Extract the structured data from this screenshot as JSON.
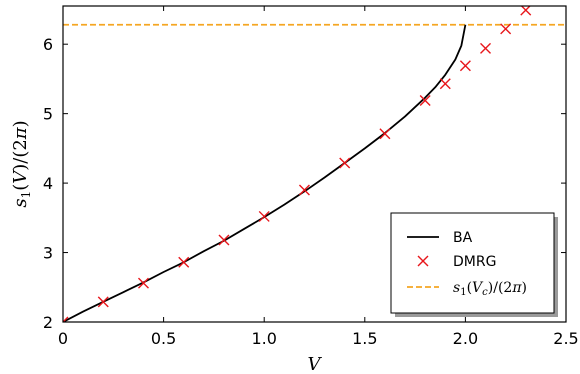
{
  "chart_data": {
    "type": "line",
    "xlabel": "V",
    "ylabel": "s1(V)/(2π)",
    "xlim": [
      0,
      2.5
    ],
    "ylim": [
      2,
      6.55
    ],
    "xticks": [
      0,
      0.5,
      1.0,
      1.5,
      2.0,
      2.5
    ],
    "xtick_labels": [
      "0",
      "0.5",
      "1.0",
      "1.5",
      "2.0",
      "2.5"
    ],
    "yticks": [
      2,
      3,
      4,
      5,
      6
    ],
    "ytick_labels": [
      "2",
      "3",
      "4",
      "5",
      "6"
    ],
    "grid": false,
    "legend_position": "lower-right",
    "series": [
      {
        "name": "BA",
        "kind": "line",
        "color": "#000000",
        "x": [
          0,
          0.1,
          0.2,
          0.3,
          0.4,
          0.5,
          0.6,
          0.7,
          0.8,
          0.9,
          1.0,
          1.1,
          1.2,
          1.3,
          1.4,
          1.5,
          1.6,
          1.7,
          1.8,
          1.85,
          1.9,
          1.95,
          1.98,
          2.0
        ],
        "y": [
          2.0,
          2.15,
          2.29,
          2.43,
          2.57,
          2.72,
          2.86,
          3.02,
          3.17,
          3.34,
          3.51,
          3.69,
          3.88,
          4.08,
          4.29,
          4.5,
          4.72,
          4.96,
          5.23,
          5.38,
          5.56,
          5.78,
          5.98,
          6.28
        ]
      },
      {
        "name": "DMRG",
        "kind": "scatter",
        "color": "#e8161b",
        "x": [
          0,
          0.2,
          0.4,
          0.6,
          0.8,
          1.0,
          1.2,
          1.4,
          1.6,
          1.8,
          1.9,
          2.0,
          2.1,
          2.2,
          2.3
        ],
        "y": [
          2.0,
          2.29,
          2.56,
          2.86,
          3.18,
          3.52,
          3.9,
          4.29,
          4.71,
          5.19,
          5.43,
          5.69,
          5.94,
          6.22,
          6.49
        ]
      },
      {
        "name": "s1(Vc)/(2π)",
        "kind": "hline",
        "color": "#f5a623",
        "y": 6.28
      }
    ]
  }
}
